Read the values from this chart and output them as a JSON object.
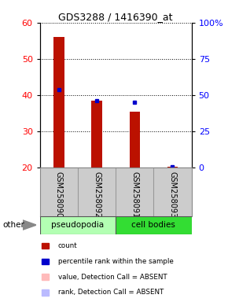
{
  "title": "GDS3288 / 1416390_at",
  "samples": [
    "GSM258090",
    "GSM258092",
    "GSM258091",
    "GSM258093"
  ],
  "groups": [
    "pseudopodia",
    "pseudopodia",
    "cell bodies",
    "cell bodies"
  ],
  "group_colors": {
    "pseudopodia": "#b3ffb3",
    "cell bodies": "#33dd33"
  },
  "red_values": [
    56.0,
    38.5,
    35.5,
    20.2
  ],
  "blue_values": [
    41.5,
    38.5,
    38.0,
    20.2
  ],
  "ylim_left": [
    20,
    60
  ],
  "ylim_right": [
    0,
    100
  ],
  "yticks_left": [
    20,
    30,
    40,
    50,
    60
  ],
  "yticks_right": [
    0,
    25,
    50,
    75,
    100
  ],
  "ytick_labels_right": [
    "0",
    "25",
    "50",
    "75",
    "100%"
  ],
  "bar_color": "#bb1100",
  "blue_color": "#0000cc",
  "legend_items": [
    {
      "color": "#bb1100",
      "label": "count"
    },
    {
      "color": "#0000cc",
      "label": "percentile rank within the sample"
    },
    {
      "color": "#ffbbbb",
      "label": "value, Detection Call = ABSENT"
    },
    {
      "color": "#bbbbff",
      "label": "rank, Detection Call = ABSENT"
    }
  ],
  "bg_color": "#ffffff",
  "sample_area_color": "#cccccc",
  "bar_width": 0.28
}
